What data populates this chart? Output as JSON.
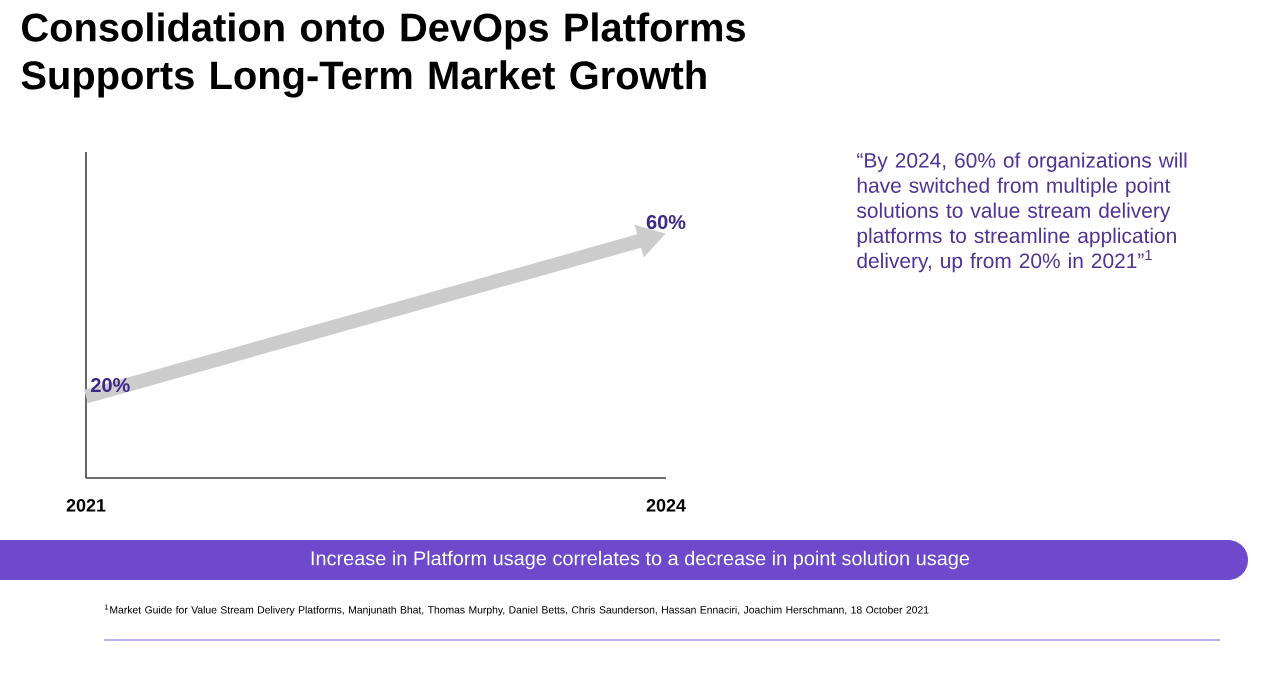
{
  "chart_data": {
    "type": "line",
    "title": "Consolidation onto DevOps Platforms Supports Long-Term Market Growth",
    "categories": [
      "2021",
      "2024"
    ],
    "series": [
      {
        "color": "#cccccc",
        "values": [
          20,
          60
        ],
        "value_labels": [
          "20%",
          "60%"
        ]
      }
    ],
    "annotations": [
      "“By 2024, 60% of organizations will have switched from multiple point solutions to value stream delivery platforms to streamline application delivery, up from 20% in 2021”$^{1}$",
      "Increase in Platform usage correlates to a decrease in point solution usage",
      "$^{1}$Market Guide for Value Stream Delivery Platforms, Manjunath Bhat, Thomas Murphy, Daniel Betts, Chris Saunderson, Hassan Ennaciri, Joachim Herschmann, 18 October 2021"
    ]
  }
}
